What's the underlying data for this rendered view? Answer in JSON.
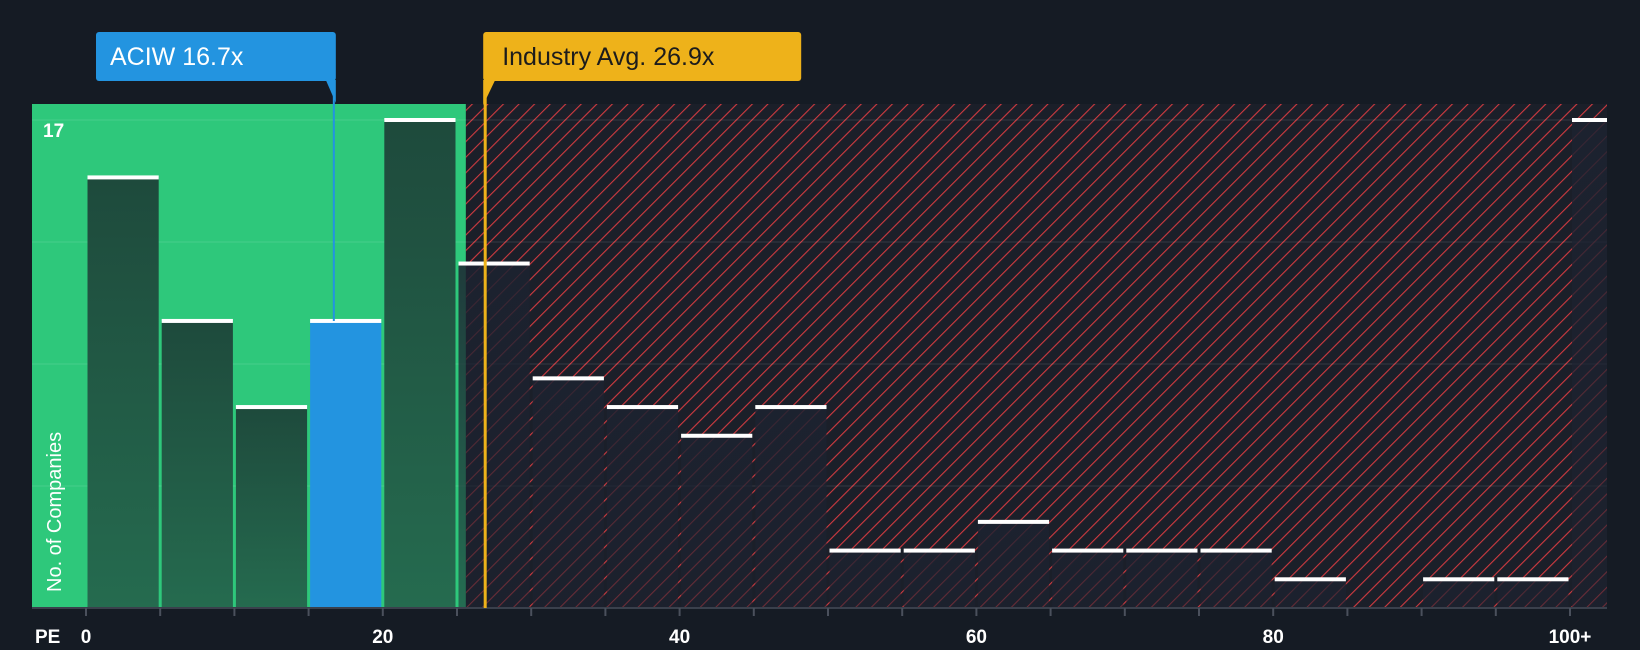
{
  "colors": {
    "background": "#151b24",
    "fair_zone": "#2ec87b",
    "bar_dark": "#1e4a3c",
    "bar_highlight": "#2394e0",
    "hatch_red": "#d03a40",
    "industry": "#eeb21a",
    "bar_cap": "#ffffff"
  },
  "chart_data": {
    "type": "bar",
    "title": "",
    "xlabel": "PE",
    "ylabel": "No. of Companies",
    "bin_width": 5,
    "x_min": 0,
    "x_max": 105,
    "y_max": 17,
    "x_ticks": [
      {
        "value": 0,
        "label": "0"
      },
      {
        "value": 20,
        "label": "20"
      },
      {
        "value": 40,
        "label": "40"
      },
      {
        "value": 60,
        "label": "60"
      },
      {
        "value": 80,
        "label": "80"
      },
      {
        "value": 100,
        "label": "100+"
      }
    ],
    "y_top_label": "17",
    "bins": [
      {
        "start": 0,
        "count": 15
      },
      {
        "start": 5,
        "count": 10
      },
      {
        "start": 10,
        "count": 7
      },
      {
        "start": 15,
        "count": 10
      },
      {
        "start": 20,
        "count": 17
      },
      {
        "start": 25,
        "count": 12
      },
      {
        "start": 30,
        "count": 8
      },
      {
        "start": 35,
        "count": 7
      },
      {
        "start": 40,
        "count": 6
      },
      {
        "start": 45,
        "count": 7
      },
      {
        "start": 50,
        "count": 2
      },
      {
        "start": 55,
        "count": 2
      },
      {
        "start": 60,
        "count": 3
      },
      {
        "start": 65,
        "count": 2
      },
      {
        "start": 70,
        "count": 2
      },
      {
        "start": 75,
        "count": 2
      },
      {
        "start": 80,
        "count": 1
      },
      {
        "start": 85,
        "count": 0
      },
      {
        "start": 90,
        "count": 1
      },
      {
        "start": 95,
        "count": 1
      },
      {
        "start": 100,
        "count": 17
      }
    ],
    "fair_zone_upper": 25.6,
    "company": {
      "ticker": "ACIW",
      "value": 16.7,
      "label": "ACIW 16.7x"
    },
    "industry_avg": {
      "value": 26.9,
      "label": "Industry Avg. 26.9x"
    }
  }
}
